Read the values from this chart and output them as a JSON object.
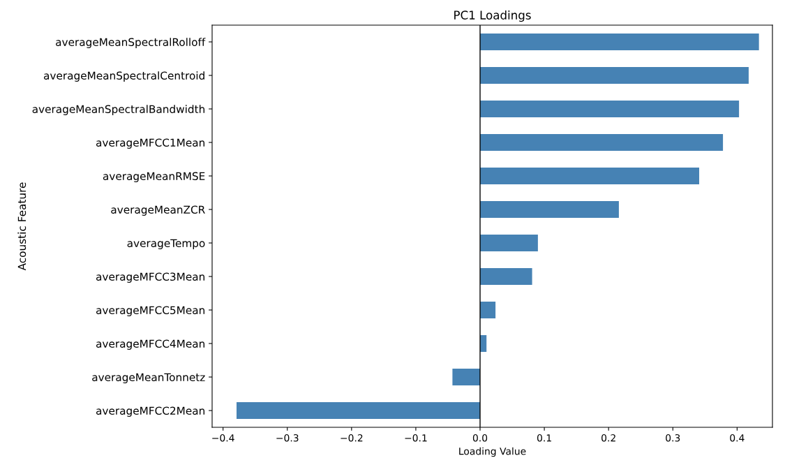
{
  "chart_data": {
    "type": "bar",
    "orientation": "horizontal",
    "title": "PC1 Loadings",
    "xlabel": "Loading Value",
    "ylabel": "Acoustic Feature",
    "categories": [
      "averageMeanSpectralRolloff",
      "averageMeanSpectralCentroid",
      "averageMeanSpectralBandwidth",
      "averageMFCC1Mean",
      "averageMeanRMSE",
      "averageMeanZCR",
      "averageTempo",
      "averageMFCC3Mean",
      "averageMFCC5Mean",
      "averageMFCC4Mean",
      "averageMeanTonnetz",
      "averageMFCC2Mean"
    ],
    "values": [
      0.434,
      0.418,
      0.403,
      0.378,
      0.341,
      0.216,
      0.09,
      0.081,
      0.024,
      0.01,
      -0.043,
      -0.379
    ],
    "color": "#4682b4",
    "xlim": [
      -0.417,
      0.455
    ],
    "xticks": [
      {
        "value": -0.4,
        "label": "−0.4"
      },
      {
        "value": -0.3,
        "label": "−0.3"
      },
      {
        "value": -0.2,
        "label": "−0.2"
      },
      {
        "value": -0.1,
        "label": "−0.1"
      },
      {
        "value": 0,
        "label": "0.0"
      },
      0.1,
      0.2,
      0.3,
      0.4
    ],
    "ref_lines": [
      {
        "axis": "x",
        "value": 0,
        "color": "#000000"
      }
    ],
    "grid": false,
    "legend": false
  }
}
